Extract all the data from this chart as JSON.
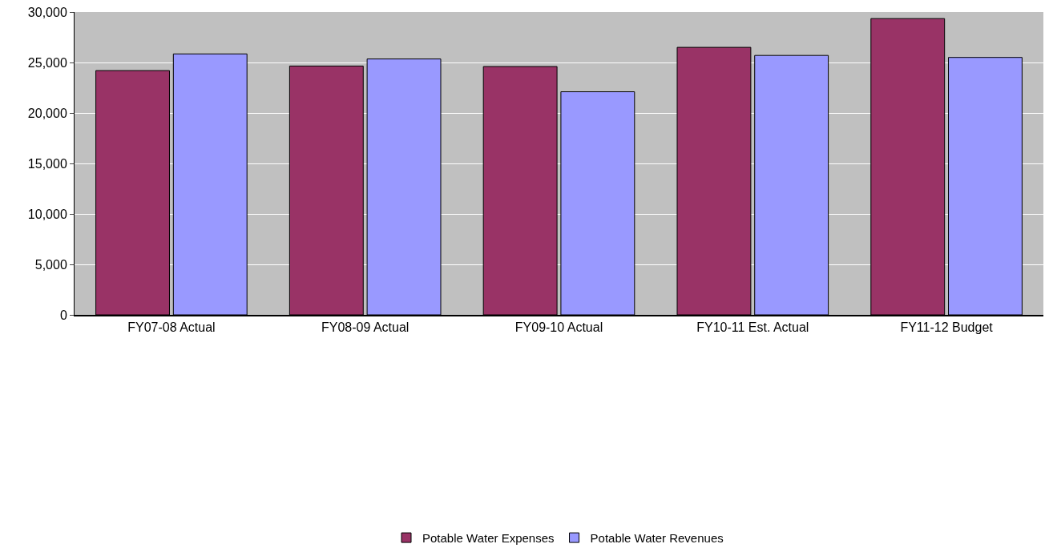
{
  "chart_data": {
    "type": "bar",
    "categories": [
      "FY07-08 Actual",
      "FY08-09 Actual",
      "FY09-10 Actual",
      "FY10-11 Est. Actual",
      "FY11-12 Budget"
    ],
    "series": [
      {
        "name": "Potable Water Expenses",
        "color": "#993366",
        "values": [
          24200,
          24650,
          24600,
          26500,
          29350
        ]
      },
      {
        "name": "Potable Water Revenues",
        "color": "#9999ff",
        "values": [
          25850,
          25350,
          22100,
          25700,
          25500
        ]
      }
    ],
    "ylim": [
      0,
      30000
    ],
    "yticks": [
      {
        "value": 0,
        "label": "0"
      },
      {
        "value": 5000,
        "label": "5,000"
      },
      {
        "value": 10000,
        "label": "10,000"
      },
      {
        "value": 15000,
        "label": "15,000"
      },
      {
        "value": 20000,
        "label": "20,000"
      },
      {
        "value": 25000,
        "label": "25,000"
      },
      {
        "value": 30000,
        "label": "30,000"
      }
    ],
    "grid": "y",
    "legend": "bottom"
  }
}
